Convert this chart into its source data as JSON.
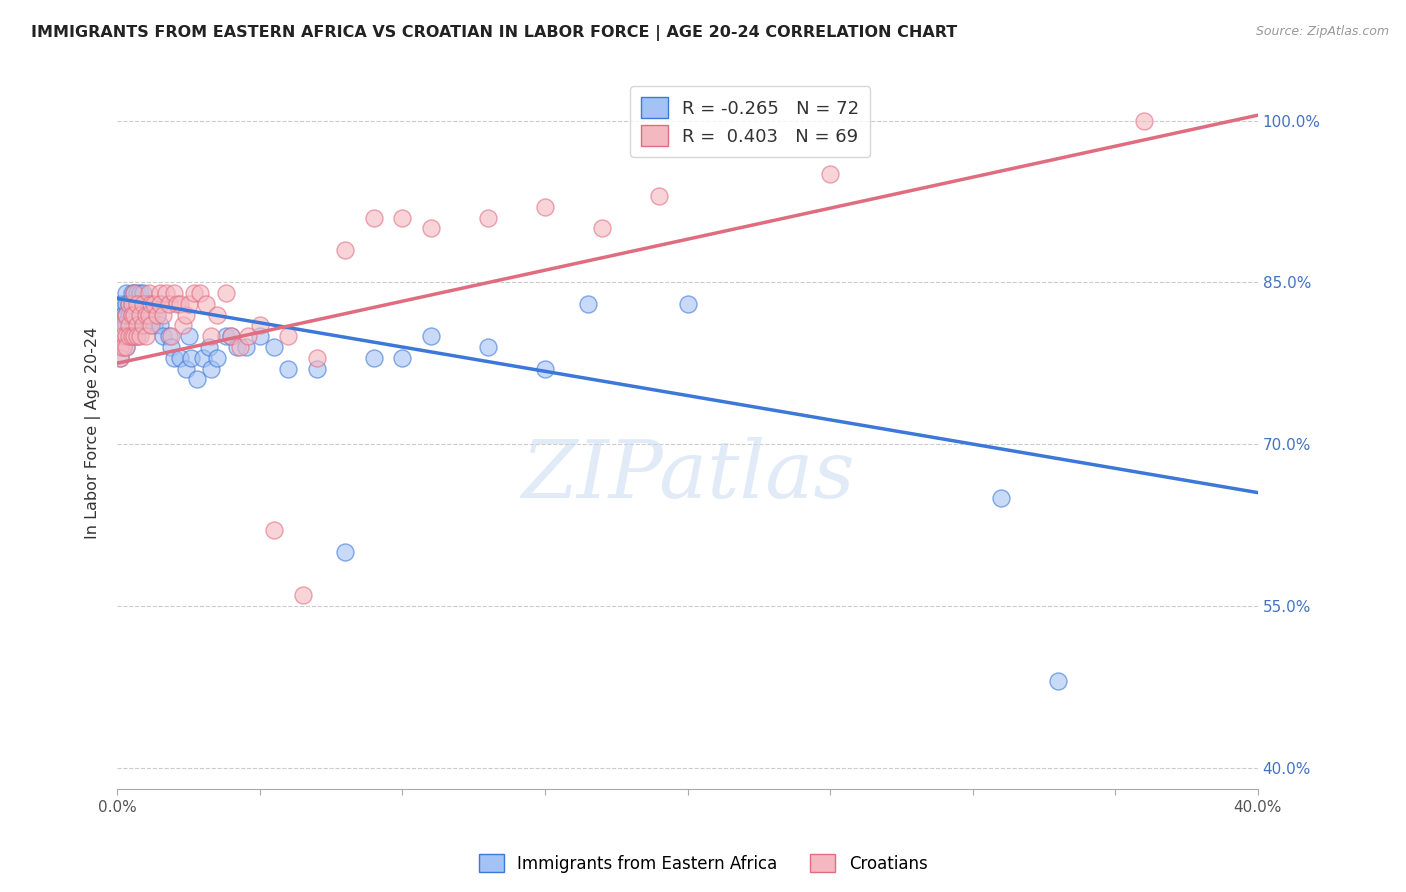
{
  "title": "IMMIGRANTS FROM EASTERN AFRICA VS CROATIAN IN LABOR FORCE | AGE 20-24 CORRELATION CHART",
  "source": "Source: ZipAtlas.com",
  "ylabel": "In Labor Force | Age 20-24",
  "xlim": [
    0.0,
    0.4
  ],
  "ylim": [
    0.38,
    1.04
  ],
  "xticks": [
    0.0,
    0.05,
    0.1,
    0.15,
    0.2,
    0.25,
    0.3,
    0.35,
    0.4
  ],
  "xtick_labels": [
    "0.0%",
    "",
    "",
    "",
    "",
    "",
    "",
    "",
    "40.0%"
  ],
  "ytick_labels_right": [
    "100.0%",
    "85.0%",
    "70.0%",
    "55.0%",
    "40.0%"
  ],
  "yticks_right": [
    1.0,
    0.85,
    0.7,
    0.55,
    0.4
  ],
  "blue_R": -0.265,
  "blue_N": 72,
  "pink_R": 0.403,
  "pink_N": 69,
  "blue_color": "#a4c2f4",
  "pink_color": "#f4b8c1",
  "blue_line_color": "#3c78d8",
  "pink_line_color": "#e06c80",
  "watermark": "ZIPatlas",
  "watermark_color": "#c5d9f0",
  "legend1_label": "Immigrants from Eastern Africa",
  "legend2_label": "Croatians",
  "blue_line_x0": 0.0,
  "blue_line_y0": 0.835,
  "blue_line_x1": 0.4,
  "blue_line_y1": 0.655,
  "pink_line_x0": 0.0,
  "pink_line_y0": 0.775,
  "pink_line_x1": 0.4,
  "pink_line_y1": 1.005,
  "blue_x": [
    0.001,
    0.001,
    0.001,
    0.002,
    0.002,
    0.002,
    0.002,
    0.003,
    0.003,
    0.003,
    0.003,
    0.003,
    0.004,
    0.004,
    0.004,
    0.005,
    0.005,
    0.005,
    0.005,
    0.006,
    0.006,
    0.006,
    0.007,
    0.007,
    0.007,
    0.007,
    0.008,
    0.008,
    0.008,
    0.009,
    0.009,
    0.009,
    0.01,
    0.01,
    0.011,
    0.011,
    0.012,
    0.013,
    0.014,
    0.015,
    0.015,
    0.016,
    0.018,
    0.019,
    0.02,
    0.022,
    0.024,
    0.025,
    0.026,
    0.028,
    0.03,
    0.032,
    0.033,
    0.035,
    0.038,
    0.04,
    0.042,
    0.045,
    0.05,
    0.055,
    0.06,
    0.07,
    0.08,
    0.09,
    0.1,
    0.11,
    0.13,
    0.15,
    0.165,
    0.2,
    0.31,
    0.33
  ],
  "blue_y": [
    0.83,
    0.81,
    0.78,
    0.83,
    0.82,
    0.8,
    0.79,
    0.84,
    0.83,
    0.82,
    0.81,
    0.79,
    0.83,
    0.82,
    0.8,
    0.84,
    0.83,
    0.82,
    0.8,
    0.84,
    0.83,
    0.81,
    0.84,
    0.83,
    0.82,
    0.8,
    0.84,
    0.83,
    0.82,
    0.84,
    0.83,
    0.81,
    0.83,
    0.82,
    0.83,
    0.81,
    0.82,
    0.81,
    0.82,
    0.83,
    0.81,
    0.8,
    0.8,
    0.79,
    0.78,
    0.78,
    0.77,
    0.8,
    0.78,
    0.76,
    0.78,
    0.79,
    0.77,
    0.78,
    0.8,
    0.8,
    0.79,
    0.79,
    0.8,
    0.79,
    0.77,
    0.77,
    0.6,
    0.78,
    0.78,
    0.8,
    0.79,
    0.77,
    0.83,
    0.83,
    0.65,
    0.48
  ],
  "pink_x": [
    0.001,
    0.001,
    0.001,
    0.002,
    0.002,
    0.002,
    0.003,
    0.003,
    0.003,
    0.004,
    0.004,
    0.004,
    0.005,
    0.005,
    0.005,
    0.006,
    0.006,
    0.006,
    0.007,
    0.007,
    0.007,
    0.008,
    0.008,
    0.009,
    0.009,
    0.01,
    0.01,
    0.011,
    0.011,
    0.012,
    0.012,
    0.013,
    0.014,
    0.015,
    0.015,
    0.016,
    0.017,
    0.018,
    0.019,
    0.02,
    0.021,
    0.022,
    0.023,
    0.024,
    0.025,
    0.027,
    0.029,
    0.031,
    0.033,
    0.035,
    0.038,
    0.04,
    0.043,
    0.046,
    0.05,
    0.055,
    0.06,
    0.065,
    0.07,
    0.08,
    0.09,
    0.1,
    0.11,
    0.13,
    0.15,
    0.17,
    0.19,
    0.25,
    0.36
  ],
  "pink_y": [
    0.8,
    0.79,
    0.78,
    0.81,
    0.8,
    0.79,
    0.82,
    0.8,
    0.79,
    0.83,
    0.81,
    0.8,
    0.83,
    0.82,
    0.8,
    0.84,
    0.82,
    0.8,
    0.83,
    0.81,
    0.8,
    0.82,
    0.8,
    0.83,
    0.81,
    0.82,
    0.8,
    0.84,
    0.82,
    0.83,
    0.81,
    0.83,
    0.82,
    0.84,
    0.83,
    0.82,
    0.84,
    0.83,
    0.8,
    0.84,
    0.83,
    0.83,
    0.81,
    0.82,
    0.83,
    0.84,
    0.84,
    0.83,
    0.8,
    0.82,
    0.84,
    0.8,
    0.79,
    0.8,
    0.81,
    0.62,
    0.8,
    0.56,
    0.78,
    0.88,
    0.91,
    0.91,
    0.9,
    0.91,
    0.92,
    0.9,
    0.93,
    0.95,
    1.0
  ]
}
